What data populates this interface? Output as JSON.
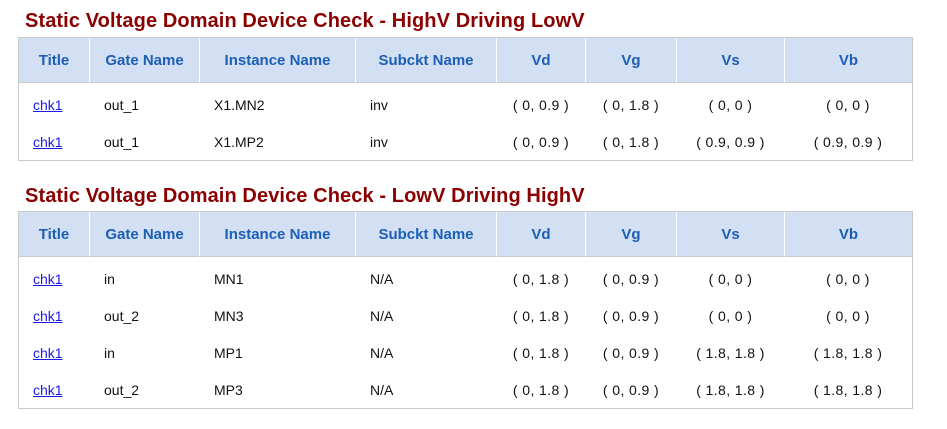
{
  "sections": [
    {
      "title": "Static Voltage Domain Device Check - HighV Driving LowV",
      "columns": [
        "Title",
        "Gate Name",
        "Instance Name",
        "Subckt Name",
        "Vd",
        "Vg",
        "Vs",
        "Vb"
      ],
      "rows": [
        {
          "title": "chk1",
          "gate": "out_1",
          "instance": "X1.MN2",
          "subckt": "inv",
          "vd": "( 0, 0.9 )",
          "vg": "( 0, 1.8 )",
          "vs": "( 0, 0 )",
          "vb": "( 0, 0 )"
        },
        {
          "title": "chk1",
          "gate": "out_1",
          "instance": "X1.MP2",
          "subckt": "inv",
          "vd": "( 0, 0.9 )",
          "vg": "( 0, 1.8 )",
          "vs": "( 0.9, 0.9 )",
          "vb": "( 0.9, 0.9 )"
        }
      ]
    },
    {
      "title": "Static Voltage Domain Device Check - LowV Driving HighV",
      "columns": [
        "Title",
        "Gate Name",
        "Instance Name",
        "Subckt Name",
        "Vd",
        "Vg",
        "Vs",
        "Vb"
      ],
      "rows": [
        {
          "title": "chk1",
          "gate": "in",
          "instance": "MN1",
          "subckt": "N/A",
          "vd": "( 0, 1.8 )",
          "vg": "( 0, 0.9 )",
          "vs": "( 0, 0 )",
          "vb": "( 0, 0 )"
        },
        {
          "title": "chk1",
          "gate": "out_2",
          "instance": "MN3",
          "subckt": "N/A",
          "vd": "( 0, 1.8 )",
          "vg": "( 0, 0.9 )",
          "vs": "( 0, 0 )",
          "vb": "( 0, 0 )"
        },
        {
          "title": "chk1",
          "gate": "in",
          "instance": "MP1",
          "subckt": "N/A",
          "vd": "( 0, 1.8 )",
          "vg": "( 0, 0.9 )",
          "vs": "( 1.8, 1.8 )",
          "vb": "( 1.8, 1.8 )"
        },
        {
          "title": "chk1",
          "gate": "out_2",
          "instance": "MP3",
          "subckt": "N/A",
          "vd": "( 0, 1.8 )",
          "vg": "( 0, 0.9 )",
          "vs": "( 1.8, 1.8 )",
          "vb": "( 1.8, 1.8 )"
        }
      ]
    }
  ],
  "colors": {
    "section_title": "#8b0000",
    "header_bg": "#d3dff3",
    "header_text": "#1c5fb5",
    "link": "#1a1aee",
    "table_border": "#c9c9c9"
  }
}
